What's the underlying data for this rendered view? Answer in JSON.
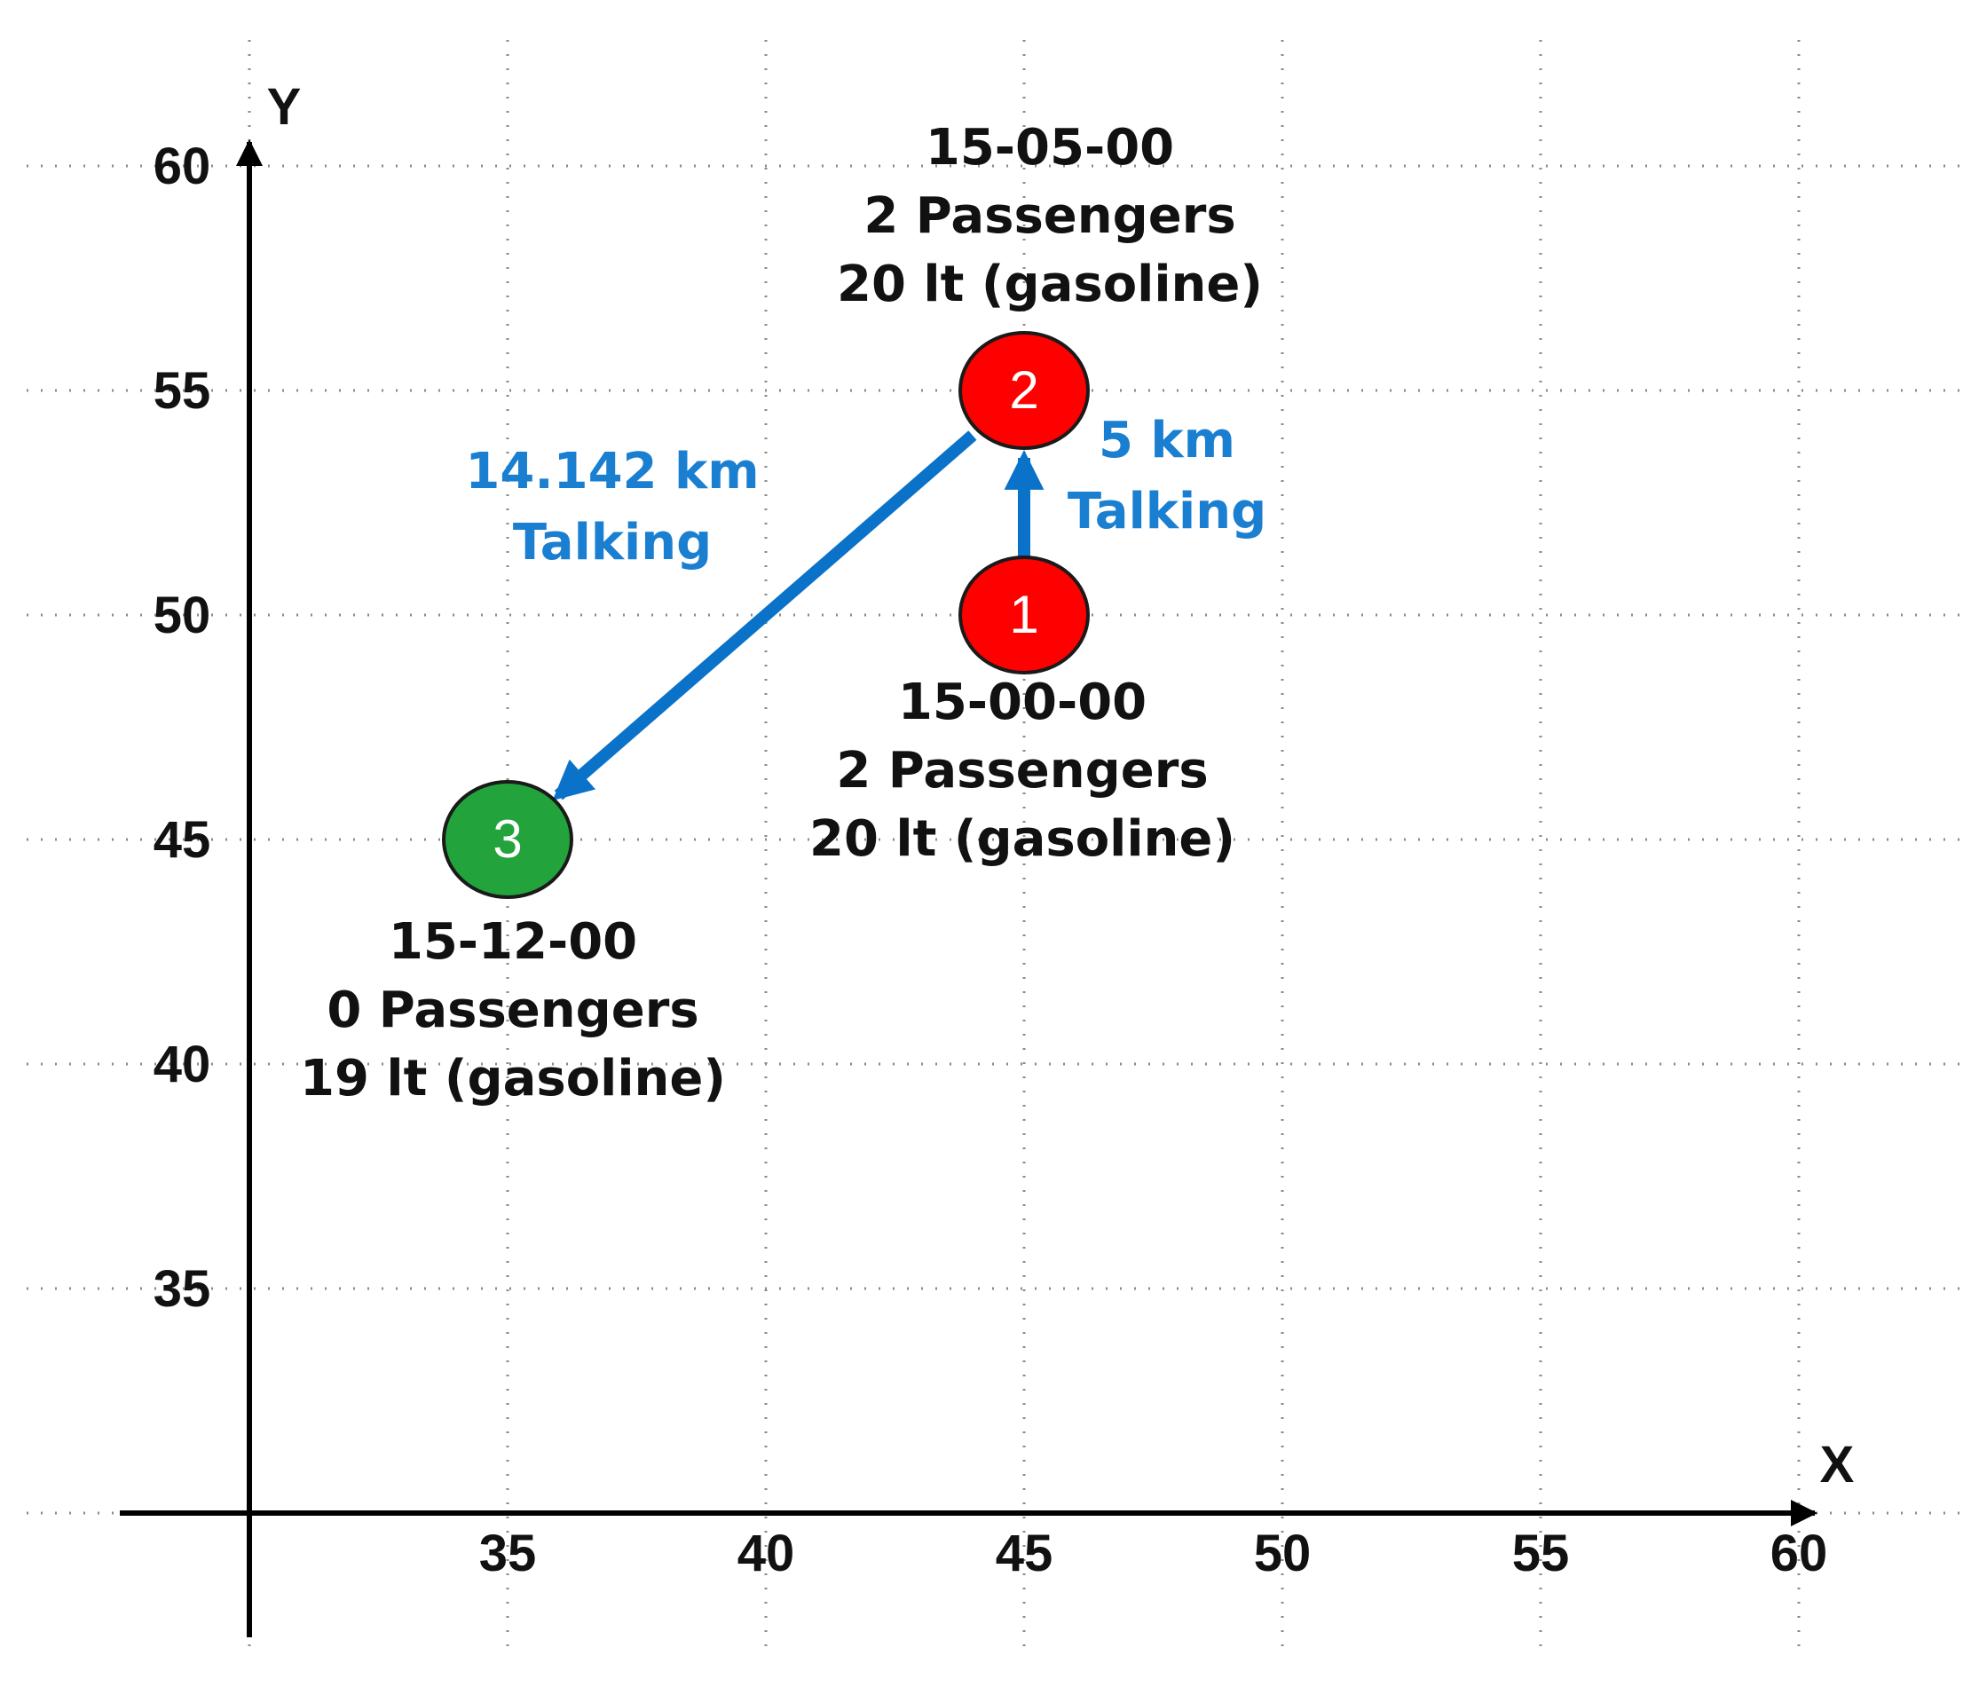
{
  "axes": {
    "x_label": "X",
    "y_label": "Y",
    "x_ticks": [
      "35",
      "40",
      "45",
      "50",
      "55",
      "60"
    ],
    "y_ticks": [
      "60",
      "55",
      "50",
      "45",
      "40",
      "35"
    ]
  },
  "nodes": [
    {
      "id": "1",
      "x": 45,
      "y": 50,
      "color": "#ff0000",
      "time": "15-00-00",
      "passengers": "2 Passengers",
      "fuel": "20 lt (gasoline)"
    },
    {
      "id": "2",
      "x": 45,
      "y": 55,
      "color": "#ff0000",
      "time": "15-05-00",
      "passengers": "2 Passengers",
      "fuel": "20 lt (gasoline)"
    },
    {
      "id": "3",
      "x": 35,
      "y": 45,
      "color": "#22a33b",
      "time": "15-12-00",
      "passengers": "0 Passengers",
      "fuel": "19 lt (gasoline)"
    }
  ],
  "edges": [
    {
      "from": "1",
      "to": "2",
      "distance": "5 km",
      "status": "Talking"
    },
    {
      "from": "2",
      "to": "3",
      "distance": "14.142 km",
      "status": "Talking"
    }
  ],
  "colors": {
    "edge": "#0a72c8",
    "edge_text": "#1a7fd0",
    "axis": "#000000",
    "grid": "#8a8a8a",
    "node_outline": "#1a1a1a"
  }
}
